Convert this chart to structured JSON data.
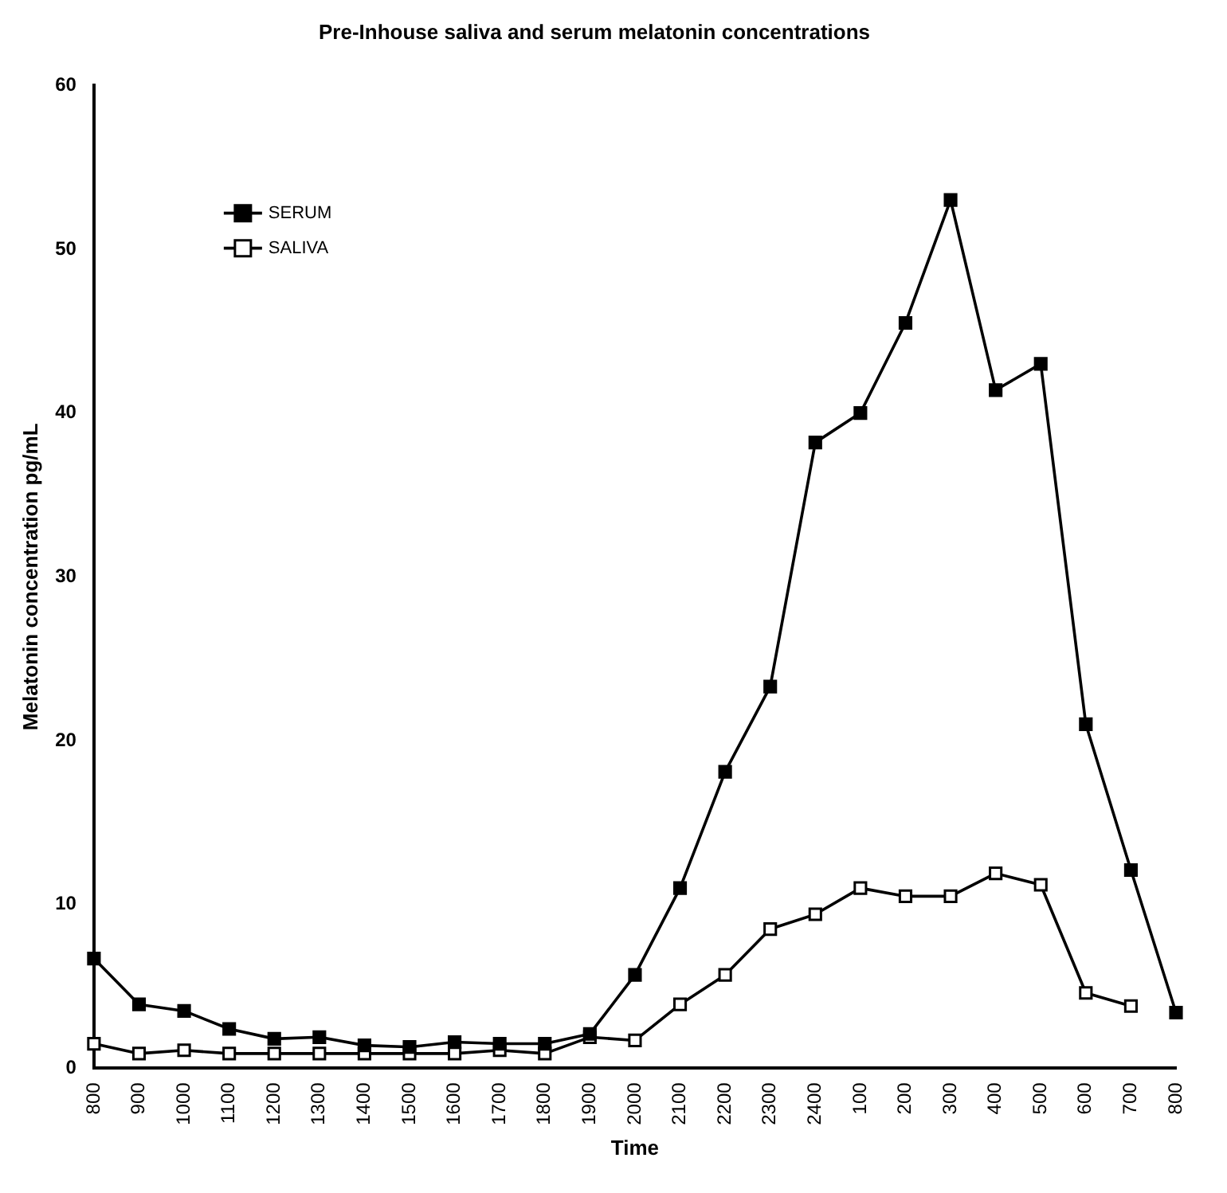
{
  "chart_data": {
    "type": "line",
    "title": "Pre-Inhouse saliva and serum melatonin concentrations",
    "xlabel": "Time",
    "ylabel": "Melatonin concentration pg/mL",
    "categories": [
      "800",
      "900",
      "1000",
      "1100",
      "1200",
      "1300",
      "1400",
      "1500",
      "1600",
      "1700",
      "1800",
      "1900",
      "2000",
      "2100",
      "2200",
      "2300",
      "2400",
      "100",
      "200",
      "300",
      "400",
      "500",
      "600",
      "700",
      "800"
    ],
    "series": [
      {
        "name": "SERUM",
        "color": "#000000",
        "values": [
          6.7,
          3.9,
          3.5,
          2.4,
          1.8,
          1.9,
          1.4,
          1.3,
          1.6,
          1.5,
          1.5,
          2.1,
          5.7,
          11,
          18.1,
          23.3,
          38.2,
          40,
          45.5,
          53,
          41.4,
          43,
          21,
          12.1,
          3.4
        ]
      },
      {
        "name": "SALIVA",
        "color": "#000000",
        "values": [
          1.5,
          0.9,
          1.1,
          0.9,
          0.9,
          0.9,
          0.9,
          0.9,
          0.9,
          1.1,
          0.9,
          1.9,
          1.7,
          3.9,
          5.7,
          8.5,
          9.4,
          11,
          10.5,
          10.5,
          11.9,
          11.2,
          4.6,
          3.8,
          null
        ]
      }
    ],
    "ylim": [
      0,
      60
    ],
    "yticks": [
      0,
      10,
      20,
      30,
      40,
      50,
      60
    ],
    "grid": false,
    "legend": "top left",
    "marker": "square",
    "line_style": "solid"
  }
}
